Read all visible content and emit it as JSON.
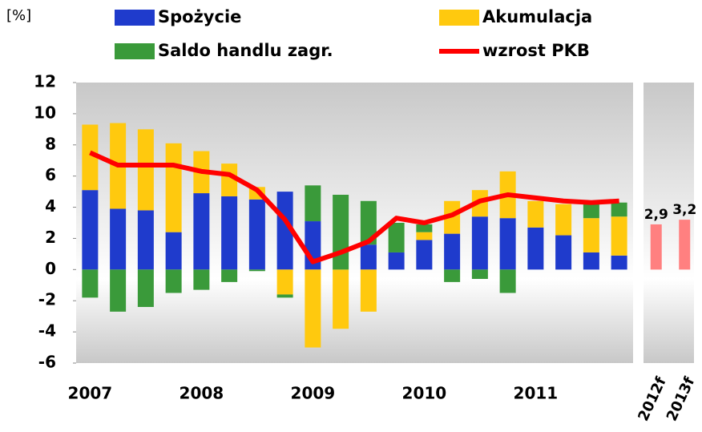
{
  "chart_data": [
    {
      "type": "bar",
      "stacked": true,
      "ylabel": "[%]",
      "categories": [
        "2007",
        null,
        null,
        null,
        "2008",
        null,
        null,
        null,
        "2009",
        null,
        null,
        null,
        "2010",
        null,
        null,
        null,
        "2011",
        null,
        null,
        null
      ],
      "ylim": [
        -6,
        12
      ],
      "yticks": [
        -6,
        -4,
        -2,
        0,
        2,
        4,
        6,
        8,
        10,
        12
      ],
      "series": [
        {
          "name": "Spożycie",
          "color": "#1f3bcc",
          "values": [
            5.1,
            3.9,
            3.8,
            2.4,
            4.9,
            4.7,
            4.5,
            5.0,
            3.1,
            0,
            1.6,
            1.1,
            1.9,
            2.3,
            3.4,
            3.3,
            2.7,
            2.2,
            1.1,
            0.9
          ]
        },
        {
          "name": "Akumulacja",
          "color": "#ffc90e",
          "values": [
            4.2,
            5.5,
            5.2,
            5.7,
            2.7,
            2.1,
            0.8,
            -1.6,
            -5.0,
            -3.8,
            -2.7,
            0,
            0.5,
            2.1,
            1.7,
            3.0,
            1.7,
            2.0,
            2.2,
            2.5
          ]
        },
        {
          "name": "Saldo handlu zagr.",
          "color": "#3a9a3a",
          "values": [
            -1.8,
            -2.7,
            -2.4,
            -1.5,
            -1.3,
            -0.8,
            -0.1,
            -0.2,
            2.3,
            4.8,
            2.8,
            1.9,
            0.5,
            -0.8,
            -0.6,
            -1.5,
            0,
            0,
            0.9,
            0.9
          ]
        },
        {
          "name": "wzrost PKB",
          "color": "#ff0000",
          "kind": "line",
          "values": [
            7.5,
            6.7,
            6.7,
            6.7,
            6.3,
            6.1,
            5.1,
            3.2,
            0.5,
            1.1,
            1.8,
            3.3,
            3.0,
            3.5,
            4.4,
            4.8,
            4.6,
            4.4,
            4.3,
            4.4
          ]
        }
      ]
    },
    {
      "type": "bar",
      "categories": [
        "2012f",
        "2013f"
      ],
      "values": [
        2.9,
        3.2
      ],
      "value_labels": [
        "2,9",
        "3,2"
      ],
      "color": "#ff8080",
      "label_color": "#ff0000",
      "ylim": [
        -6,
        12
      ]
    }
  ]
}
